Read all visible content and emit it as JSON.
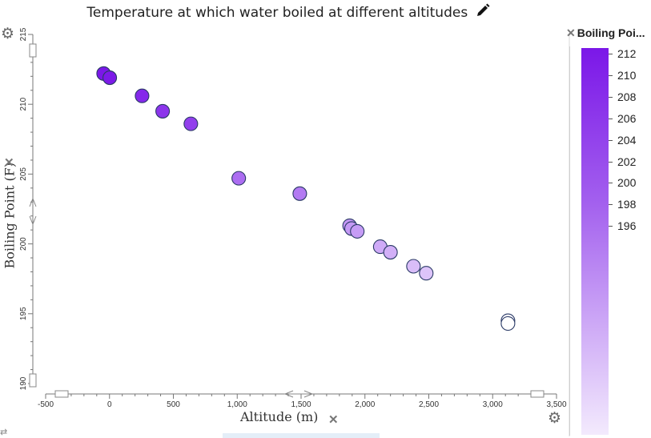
{
  "title": "Temperature at which water boiled at different altitudes",
  "legend": {
    "title": "Boiling Poi...",
    "labels": [
      "212",
      "210",
      "208",
      "206",
      "204",
      "202",
      "200",
      "198",
      "196"
    ]
  },
  "icons": {
    "edit_title": "pencil-icon",
    "settings": "gear-icon",
    "remove_attribute": "close-icon",
    "axis_drag": "drag-handle-icon"
  },
  "colors": {
    "max": "#7b17e8",
    "mid": "#a360ee",
    "low": "#d2b1f7",
    "min": "#ffffff",
    "stroke": "#2a3a66"
  },
  "chart_data": {
    "type": "scatter",
    "title": "Temperature at which water boiled at different altitudes",
    "xlabel": "Altitude (m)",
    "ylabel": "Boiling Point (F)",
    "xlim": [
      -500,
      3500
    ],
    "ylim": [
      190,
      215
    ],
    "xticks": [
      "-500",
      "0",
      "500",
      "1,000",
      "1,500",
      "2,000",
      "2,500",
      "3,000",
      "3,500"
    ],
    "yticks": [
      "190",
      "195",
      "200",
      "205",
      "210",
      "215"
    ],
    "color_by": "Boiling Point (F)",
    "color_range": [
      194.3,
      212.2
    ],
    "points": [
      {
        "x": -46,
        "y": 212.2
      },
      {
        "x": 2,
        "y": 211.9
      },
      {
        "x": 255,
        "y": 210.6
      },
      {
        "x": 416,
        "y": 209.5
      },
      {
        "x": 637,
        "y": 208.6
      },
      {
        "x": 1012,
        "y": 204.7
      },
      {
        "x": 1490,
        "y": 203.6
      },
      {
        "x": 1880,
        "y": 201.3
      },
      {
        "x": 1895,
        "y": 201.1
      },
      {
        "x": 1940,
        "y": 200.9
      },
      {
        "x": 2120,
        "y": 199.8
      },
      {
        "x": 2200,
        "y": 199.4
      },
      {
        "x": 2380,
        "y": 198.4
      },
      {
        "x": 2480,
        "y": 197.9
      },
      {
        "x": 3120,
        "y": 194.5
      },
      {
        "x": 3120,
        "y": 194.3
      }
    ]
  }
}
